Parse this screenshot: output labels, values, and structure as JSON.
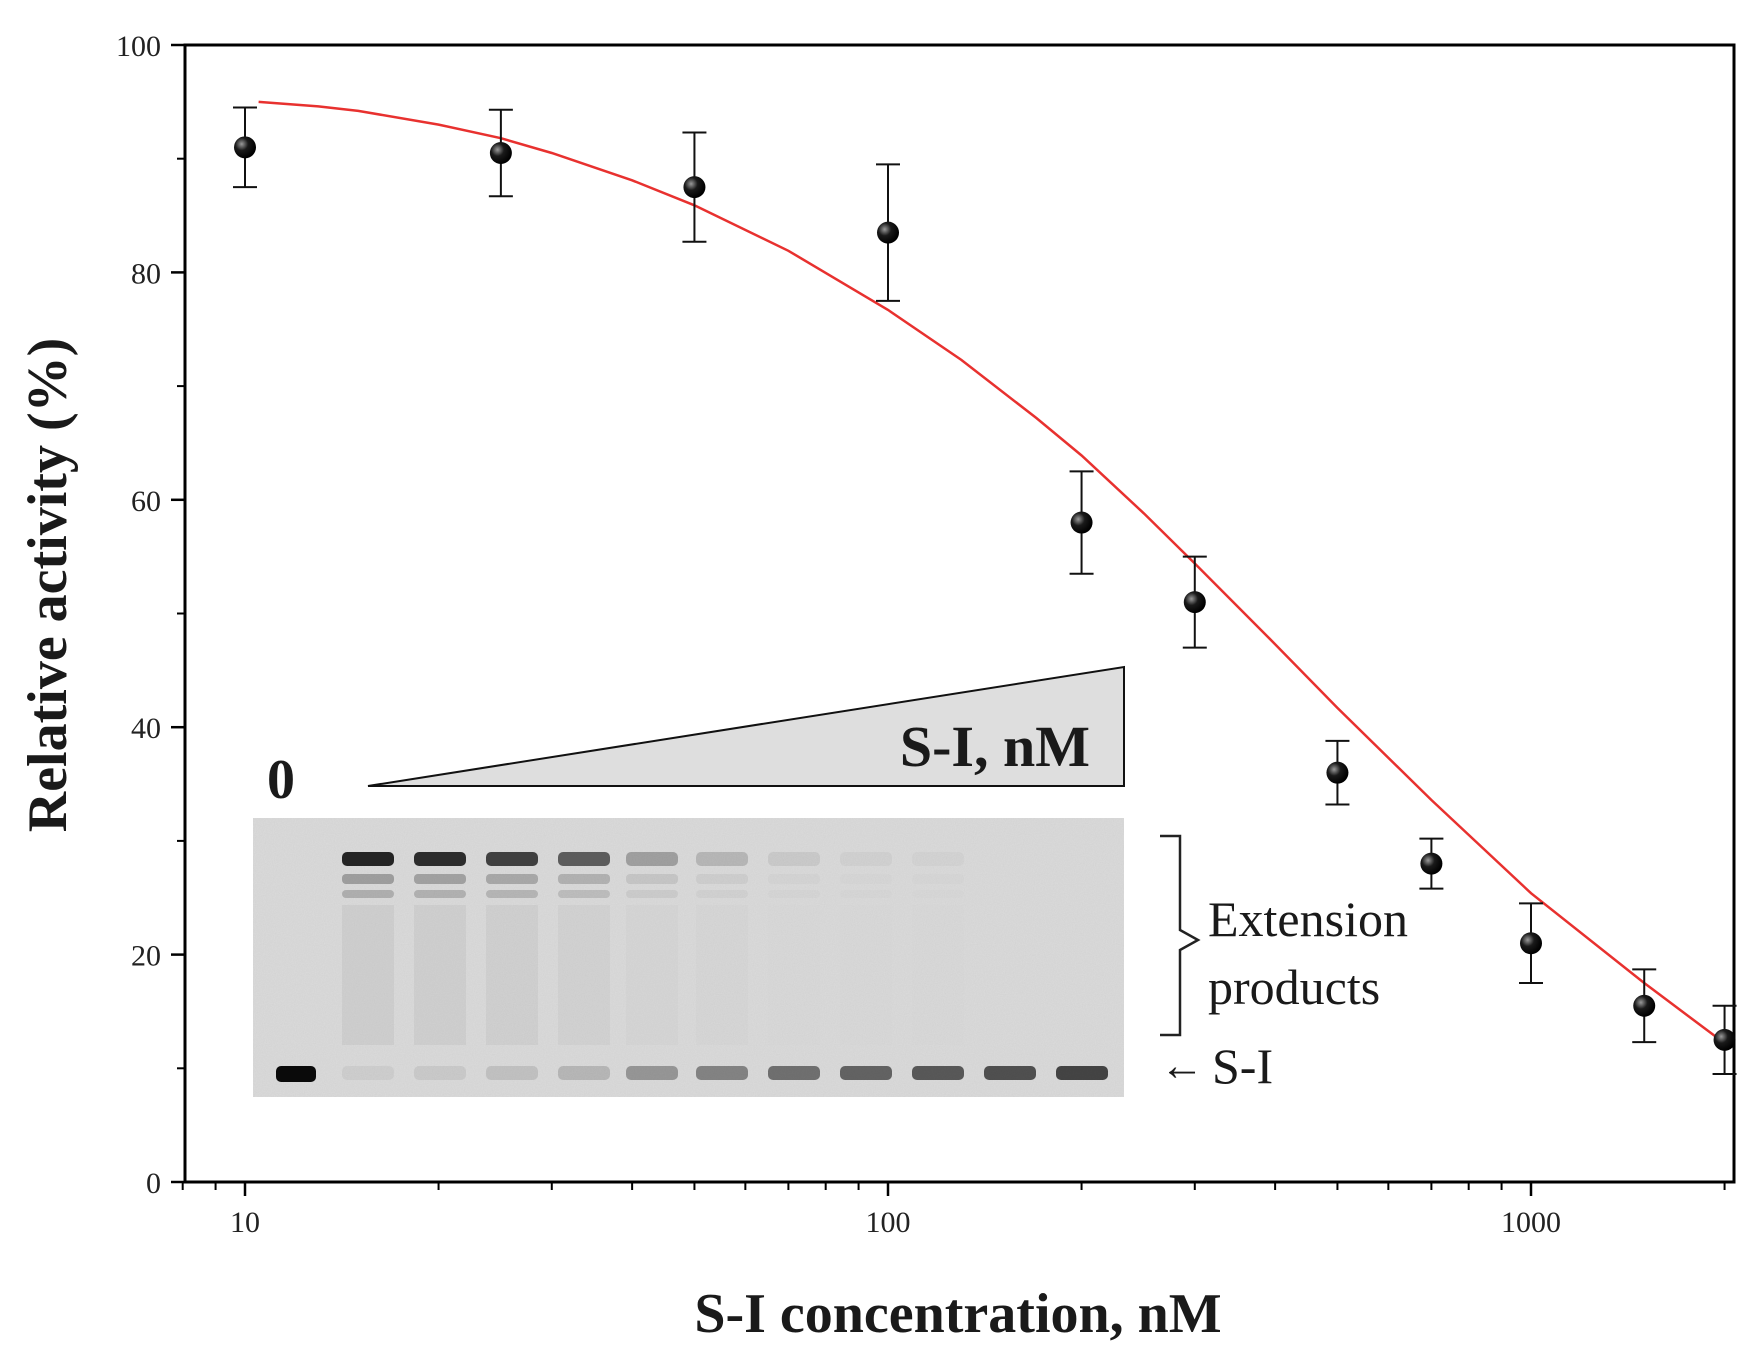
{
  "chart_data": {
    "type": "scatter",
    "xlabel": "S-I concentration, nM",
    "ylabel": "Relative activity (%)",
    "x_scale": "log",
    "xlim": [
      8,
      2000
    ],
    "ylim": [
      0,
      100
    ],
    "x_ticks": [
      10,
      100,
      1000
    ],
    "x_tick_labels": [
      "10",
      "100",
      "1000"
    ],
    "y_ticks": [
      0,
      20,
      40,
      60,
      80,
      100
    ],
    "y_tick_labels": [
      "0",
      "20",
      "40",
      "60",
      "80",
      "100"
    ],
    "series": [
      {
        "name": "measured",
        "x": [
          10,
          25,
          50,
          100,
          200,
          300,
          500,
          700,
          1000,
          1500,
          2000
        ],
        "y": [
          91,
          90.5,
          87.5,
          83.5,
          58,
          51,
          36,
          28,
          21,
          15.5,
          12.5
        ],
        "err": [
          3.5,
          3.8,
          4.8,
          6,
          4.5,
          4,
          2.8,
          2.2,
          3.5,
          3.2,
          3
        ]
      },
      {
        "name": "fit",
        "style": "line",
        "color": "#e8312f",
        "x": [
          10.5,
          13,
          15,
          20,
          25,
          30,
          40,
          50,
          70,
          100,
          130,
          170,
          200,
          250,
          300,
          400,
          500,
          700,
          1000,
          1500,
          2000
        ],
        "y": [
          95,
          94.6,
          94.2,
          93,
          91.8,
          90.5,
          88.1,
          85.9,
          81.9,
          76.7,
          72.3,
          67.2,
          63.9,
          58.8,
          54.4,
          47.3,
          41.7,
          33.6,
          25.4,
          17.5,
          12.2
        ]
      }
    ],
    "inset": {
      "zero_label": "0",
      "wedge_label": "S-I, nM",
      "bracket_label_line1": "Extension",
      "bracket_label_line2": "products",
      "band_label": "S-I",
      "arrow_glyph": "←"
    }
  }
}
